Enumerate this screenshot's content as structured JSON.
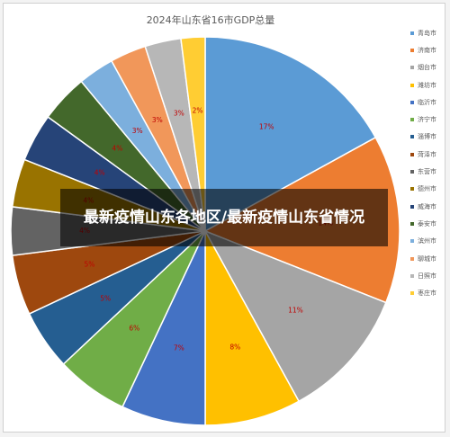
{
  "banner": {
    "text": "最新疫情山东各地区/最新疫情山东省情况"
  },
  "chart_data": {
    "type": "pie",
    "title": "2024年山东省16市GDP总量",
    "legend_position": "right",
    "categories": [
      "青岛市",
      "济南市",
      "烟台市",
      "潍坊市",
      "临沂市",
      "济宁市",
      "淄博市",
      "菏泽市",
      "东营市",
      "德州市",
      "威海市",
      "泰安市",
      "滨州市",
      "聊城市",
      "日照市",
      "枣庄市"
    ],
    "values": [
      17,
      14,
      11,
      8,
      7,
      6,
      5,
      5,
      4,
      4,
      4,
      4,
      3,
      3,
      3,
      2
    ],
    "data_labels": [
      "17%",
      "14%",
      "11%",
      "8%",
      "7%",
      "6%",
      "5%",
      "5%",
      "4%",
      "4%",
      "4%",
      "4%",
      "3%",
      "3%",
      "3%",
      "2%"
    ],
    "colors": [
      "#5b9bd5",
      "#ed7d31",
      "#a5a5a5",
      "#ffc000",
      "#4472c4",
      "#70ad47",
      "#255e91",
      "#9e480e",
      "#636363",
      "#997300",
      "#264478",
      "#43682b",
      "#7cafdd",
      "#f1975a",
      "#b7b7b7",
      "#ffcd33"
    ]
  }
}
